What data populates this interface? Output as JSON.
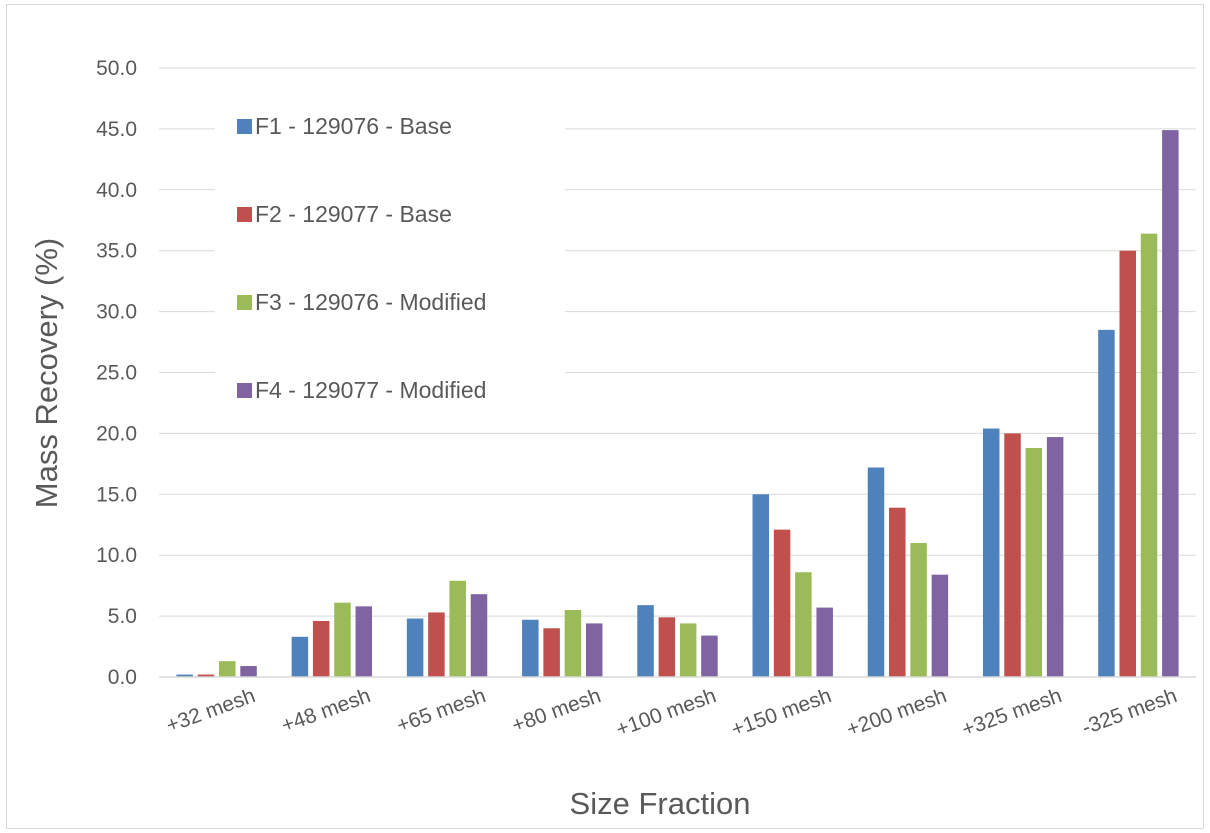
{
  "chart_data": {
    "type": "bar",
    "title": "",
    "xlabel": "Size Fraction",
    "ylabel": "Mass Recovery (%)",
    "ylim": [
      0,
      50
    ],
    "ytick_step": 5,
    "ytick_decimals": 1,
    "grid": true,
    "legend": "upper-left",
    "categories": [
      "+32 mesh",
      "+48 mesh",
      "+65 mesh",
      "+80 mesh",
      "+100 mesh",
      "+150 mesh",
      "+200 mesh",
      "+325 mesh",
      "-325 mesh"
    ],
    "series": [
      {
        "name": "F1 - 129076 - Base",
        "color": "#4f81bd",
        "values": [
          0.2,
          3.3,
          4.8,
          4.7,
          5.9,
          15.0,
          17.2,
          20.4,
          28.5
        ]
      },
      {
        "name": "F2 - 129077 - Base",
        "color": "#c0504d",
        "values": [
          0.2,
          4.6,
          5.3,
          4.0,
          4.9,
          12.1,
          13.9,
          20.0,
          35.0
        ]
      },
      {
        "name": "F3 - 129076 - Modified",
        "color": "#9bbb59",
        "values": [
          1.3,
          6.1,
          7.9,
          5.5,
          4.4,
          8.6,
          11.0,
          18.8,
          36.4
        ]
      },
      {
        "name": "F4 - 129077 - Modified",
        "color": "#8064a2",
        "values": [
          0.9,
          5.8,
          6.8,
          4.4,
          3.4,
          5.7,
          8.4,
          19.7,
          44.9
        ]
      }
    ]
  }
}
